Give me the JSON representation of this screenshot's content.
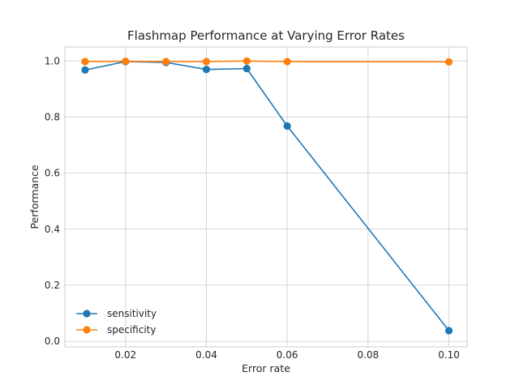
{
  "chart_data": {
    "type": "line",
    "title": "Flashmap Performance at Varying Error Rates",
    "xlabel": "Error rate",
    "ylabel": "Performance",
    "xlim": [
      0.005,
      0.1045
    ],
    "ylim": [
      -0.02,
      1.05
    ],
    "xticks": [
      0.02,
      0.04,
      0.06,
      0.08,
      0.1
    ],
    "xtick_labels": [
      "0.02",
      "0.04",
      "0.06",
      "0.08",
      "0.10"
    ],
    "yticks": [
      0.0,
      0.2,
      0.4,
      0.6,
      0.8,
      1.0
    ],
    "ytick_labels": [
      "0.0",
      "0.2",
      "0.4",
      "0.6",
      "0.8",
      "1.0"
    ],
    "grid": true,
    "legend_position": "lower-left",
    "series": [
      {
        "name": "sensitivity",
        "color": "#1f77b4",
        "marker": "circle",
        "x": [
          0.01,
          0.02,
          0.03,
          0.04,
          0.05,
          0.06,
          0.1
        ],
        "y": [
          0.968,
          0.998,
          0.995,
          0.97,
          0.973,
          0.768,
          0.038
        ]
      },
      {
        "name": "specificity",
        "color": "#ff7f0e",
        "marker": "circle",
        "x": [
          0.01,
          0.02,
          0.03,
          0.04,
          0.05,
          0.06,
          0.1
        ],
        "y": [
          0.998,
          0.999,
          0.998,
          0.998,
          1.0,
          0.998,
          0.997
        ]
      }
    ]
  }
}
